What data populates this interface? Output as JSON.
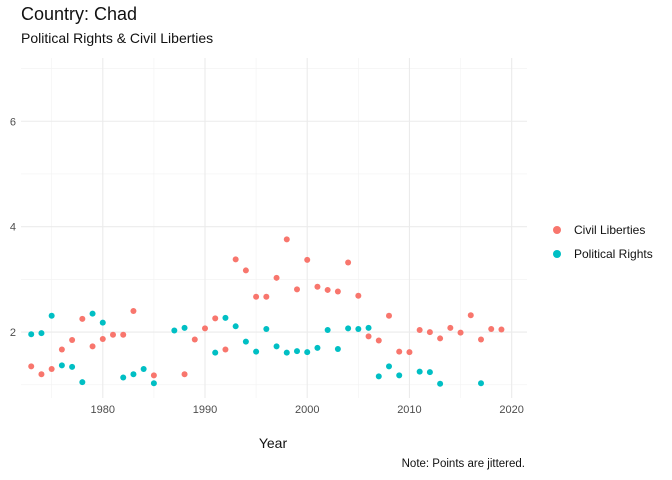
{
  "chart_data": {
    "type": "scatter",
    "title": "Country: Chad",
    "subtitle": "Political Rights & Civil Liberties",
    "xlabel": "Year",
    "ylabel": "",
    "xlim": [
      1972,
      2021.5
    ],
    "ylim": [
      0.75,
      7.2
    ],
    "xticks": [
      1980,
      1990,
      2000,
      2010,
      2020
    ],
    "yticks": [
      2,
      4,
      6
    ],
    "grid": true,
    "legend_position": "right",
    "caption": "Note: Points are jittered.",
    "series": [
      {
        "name": "Civil Liberties",
        "color": "#F8766D",
        "points": [
          [
            1973,
            1.35
          ],
          [
            1974,
            1.2
          ],
          [
            1975,
            1.3
          ],
          [
            1976,
            1.67
          ],
          [
            1977,
            1.85
          ],
          [
            1978,
            2.25
          ],
          [
            1979,
            1.73
          ],
          [
            1980,
            1.87
          ],
          [
            1981,
            1.95
          ],
          [
            1982,
            1.95
          ],
          [
            1983,
            2.4
          ],
          [
            1985,
            1.18
          ],
          [
            1988,
            1.2
          ],
          [
            1989,
            1.86
          ],
          [
            1990,
            2.07
          ],
          [
            1991,
            2.26
          ],
          [
            1992,
            1.67
          ],
          [
            1993,
            3.38
          ],
          [
            1994,
            3.17
          ],
          [
            1995,
            2.67
          ],
          [
            1996,
            2.67
          ],
          [
            1997,
            3.03
          ],
          [
            1998,
            3.76
          ],
          [
            1999,
            2.81
          ],
          [
            2000,
            3.37
          ],
          [
            2001,
            2.86
          ],
          [
            2002,
            2.8
          ],
          [
            2003,
            2.77
          ],
          [
            2004,
            3.32
          ],
          [
            2005,
            2.69
          ],
          [
            2006,
            1.92
          ],
          [
            2007,
            1.84
          ],
          [
            2008,
            2.31
          ],
          [
            2009,
            1.63
          ],
          [
            2010,
            1.62
          ],
          [
            2011,
            2.04
          ],
          [
            2012,
            2.0
          ],
          [
            2013,
            1.88
          ],
          [
            2014,
            2.08
          ],
          [
            2015,
            1.99
          ],
          [
            2016,
            2.32
          ],
          [
            2017,
            1.86
          ],
          [
            2018,
            2.06
          ],
          [
            2019,
            2.05
          ]
        ]
      },
      {
        "name": "Political Rights",
        "color": "#00BFC4",
        "points": [
          [
            1973,
            1.96
          ],
          [
            1974,
            1.98
          ],
          [
            1975,
            2.31
          ],
          [
            1976,
            1.37
          ],
          [
            1977,
            1.34
          ],
          [
            1978,
            1.05
          ],
          [
            1979,
            2.35
          ],
          [
            1980,
            2.18
          ],
          [
            1982,
            1.14
          ],
          [
            1983,
            1.2
          ],
          [
            1984,
            1.3
          ],
          [
            1985,
            1.03
          ],
          [
            1987,
            2.03
          ],
          [
            1988,
            2.08
          ],
          [
            1991,
            1.61
          ],
          [
            1992,
            2.27
          ],
          [
            1993,
            2.11
          ],
          [
            1994,
            1.82
          ],
          [
            1995,
            1.63
          ],
          [
            1996,
            2.06
          ],
          [
            1997,
            1.73
          ],
          [
            1998,
            1.61
          ],
          [
            1999,
            1.64
          ],
          [
            2000,
            1.62
          ],
          [
            2001,
            1.7
          ],
          [
            2002,
            2.04
          ],
          [
            2003,
            1.68
          ],
          [
            2004,
            2.07
          ],
          [
            2005,
            2.06
          ],
          [
            2006,
            2.08
          ],
          [
            2007,
            1.16
          ],
          [
            2008,
            1.35
          ],
          [
            2009,
            1.18
          ],
          [
            2011,
            1.25
          ],
          [
            2012,
            1.24
          ],
          [
            2013,
            1.02
          ],
          [
            2017,
            1.03
          ]
        ]
      }
    ]
  }
}
